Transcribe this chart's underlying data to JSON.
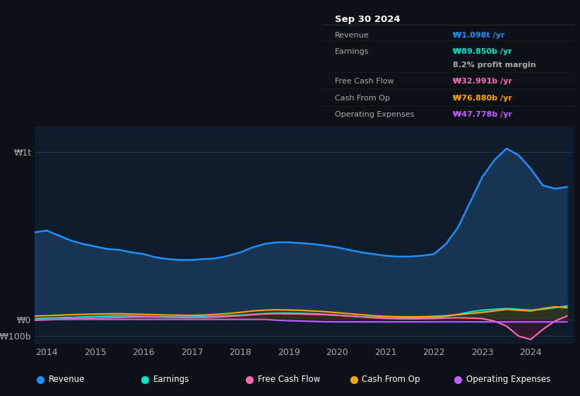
{
  "background_color": "#0d1117",
  "plot_bg_color": "#0d1b2a",
  "info_box_bg": "#000000",
  "info_box_date": "Sep 30 2024",
  "info_box_rows": [
    {
      "label": "Revenue",
      "value": "₩1.098t /yr",
      "value_color": "#1e90ff"
    },
    {
      "label": "Earnings",
      "value": "₩89.850b /yr",
      "value_color": "#00e5cc"
    },
    {
      "label": "",
      "value": "8.2% profit margin",
      "value_color": "#aaaaaa"
    },
    {
      "label": "Free Cash Flow",
      "value": "₩32.991b /yr",
      "value_color": "#ff69b4"
    },
    {
      "label": "Cash From Op",
      "value": "₩76.880b /yr",
      "value_color": "#ffa500"
    },
    {
      "label": "Operating Expenses",
      "value": "₩47.778b /yr",
      "value_color": "#bf5fff"
    }
  ],
  "ylabel_top": "₩1t",
  "ylabel_zero": "₩0",
  "ylabel_bottom": "-₩100b",
  "x_ticks": [
    2014,
    2015,
    2016,
    2017,
    2018,
    2019,
    2020,
    2021,
    2022,
    2023,
    2024
  ],
  "series": {
    "revenue": {
      "color": "#1e90ff",
      "fill_color": "#1a3a5c",
      "label": "Revenue",
      "x": [
        2013.75,
        2014.0,
        2014.25,
        2014.5,
        2014.75,
        2015.0,
        2015.25,
        2015.5,
        2015.75,
        2016.0,
        2016.25,
        2016.5,
        2016.75,
        2017.0,
        2017.25,
        2017.5,
        2017.75,
        2018.0,
        2018.25,
        2018.5,
        2018.75,
        2019.0,
        2019.25,
        2019.5,
        2019.75,
        2020.0,
        2020.25,
        2020.5,
        2020.75,
        2021.0,
        2021.25,
        2021.5,
        2021.75,
        2022.0,
        2022.25,
        2022.5,
        2022.75,
        2023.0,
        2023.25,
        2023.5,
        2023.75,
        2024.0,
        2024.25,
        2024.5,
        2024.75
      ],
      "y": [
        520,
        530,
        500,
        470,
        450,
        435,
        420,
        415,
        400,
        390,
        370,
        360,
        355,
        355,
        360,
        365,
        380,
        400,
        430,
        450,
        460,
        460,
        455,
        450,
        440,
        430,
        415,
        400,
        390,
        380,
        375,
        375,
        380,
        390,
        450,
        550,
        700,
        850,
        950,
        1020,
        980,
        900,
        800,
        780,
        790
      ]
    },
    "earnings": {
      "color": "#00e5cc",
      "fill_color": "#1a4a40",
      "label": "Earnings",
      "x": [
        2013.75,
        2014.0,
        2014.25,
        2014.5,
        2014.75,
        2015.0,
        2015.25,
        2015.5,
        2015.75,
        2016.0,
        2016.25,
        2016.5,
        2016.75,
        2017.0,
        2017.25,
        2017.5,
        2017.75,
        2018.0,
        2018.25,
        2018.5,
        2018.75,
        2019.0,
        2019.25,
        2019.5,
        2019.75,
        2020.0,
        2020.25,
        2020.5,
        2020.75,
        2021.0,
        2021.25,
        2021.5,
        2021.75,
        2022.0,
        2022.25,
        2022.5,
        2022.75,
        2023.0,
        2023.25,
        2023.5,
        2023.75,
        2024.0,
        2024.25,
        2024.5,
        2024.75
      ],
      "y": [
        5,
        8,
        10,
        12,
        15,
        18,
        20,
        22,
        20,
        18,
        16,
        15,
        14,
        14,
        16,
        18,
        22,
        25,
        30,
        35,
        38,
        38,
        36,
        34,
        30,
        25,
        20,
        16,
        12,
        10,
        8,
        8,
        10,
        12,
        18,
        30,
        45,
        55,
        60,
        65,
        60,
        55,
        60,
        70,
        80
      ]
    },
    "free_cash_flow": {
      "color": "#ff69b4",
      "fill_color": "#4a1a2a",
      "label": "Free Cash Flow",
      "x": [
        2013.75,
        2014.0,
        2014.25,
        2014.5,
        2014.75,
        2015.0,
        2015.25,
        2015.5,
        2015.75,
        2016.0,
        2016.25,
        2016.5,
        2016.75,
        2017.0,
        2017.25,
        2017.5,
        2017.75,
        2018.0,
        2018.25,
        2018.5,
        2018.75,
        2019.0,
        2019.25,
        2019.5,
        2019.75,
        2020.0,
        2020.25,
        2020.5,
        2020.75,
        2021.0,
        2021.25,
        2021.5,
        2021.75,
        2022.0,
        2022.25,
        2022.5,
        2022.75,
        2023.0,
        2023.25,
        2023.5,
        2023.75,
        2024.0,
        2024.25,
        2024.5,
        2024.75
      ],
      "y": [
        -5,
        -3,
        0,
        3,
        5,
        8,
        10,
        12,
        14,
        15,
        14,
        13,
        12,
        11,
        12,
        14,
        18,
        22,
        28,
        32,
        34,
        33,
        32,
        30,
        28,
        25,
        20,
        15,
        10,
        6,
        4,
        3,
        4,
        5,
        8,
        10,
        8,
        5,
        -10,
        -40,
        -100,
        -120,
        -60,
        -10,
        20
      ]
    },
    "cash_from_op": {
      "color": "#ffa500",
      "fill_color": "#3a2a00",
      "label": "Cash From Op",
      "x": [
        2013.75,
        2014.0,
        2014.25,
        2014.5,
        2014.75,
        2015.0,
        2015.25,
        2015.5,
        2015.75,
        2016.0,
        2016.25,
        2016.5,
        2016.75,
        2017.0,
        2017.25,
        2017.5,
        2017.75,
        2018.0,
        2018.25,
        2018.5,
        2018.75,
        2019.0,
        2019.25,
        2019.5,
        2019.75,
        2020.0,
        2020.25,
        2020.5,
        2020.75,
        2021.0,
        2021.25,
        2021.5,
        2021.75,
        2022.0,
        2022.25,
        2022.5,
        2022.75,
        2023.0,
        2023.25,
        2023.5,
        2023.75,
        2024.0,
        2024.25,
        2024.5,
        2024.75
      ],
      "y": [
        20,
        22,
        25,
        28,
        30,
        32,
        33,
        34,
        32,
        30,
        28,
        26,
        25,
        24,
        26,
        30,
        35,
        42,
        50,
        55,
        57,
        56,
        54,
        50,
        46,
        40,
        34,
        28,
        22,
        18,
        16,
        15,
        16,
        18,
        22,
        28,
        35,
        42,
        50,
        60,
        55,
        50,
        65,
        75,
        70
      ]
    },
    "operating_expenses": {
      "color": "#bf5fff",
      "fill_color": "#2a1a4a",
      "label": "Operating Expenses",
      "x": [
        2013.75,
        2014.0,
        2014.25,
        2014.5,
        2014.75,
        2015.0,
        2015.25,
        2015.5,
        2015.75,
        2016.0,
        2016.25,
        2016.5,
        2016.75,
        2017.0,
        2017.25,
        2017.5,
        2017.75,
        2018.0,
        2018.25,
        2018.5,
        2018.75,
        2019.0,
        2019.25,
        2019.5,
        2019.75,
        2020.0,
        2020.25,
        2020.5,
        2020.75,
        2021.0,
        2021.25,
        2021.5,
        2021.75,
        2022.0,
        2022.25,
        2022.5,
        2022.75,
        2023.0,
        2023.25,
        2023.5,
        2023.75,
        2024.0,
        2024.25,
        2024.5,
        2024.75
      ],
      "y": [
        0,
        0,
        0,
        0,
        0,
        0,
        0,
        0,
        0,
        0,
        0,
        0,
        0,
        0,
        0,
        0,
        0,
        0,
        0,
        0,
        -5,
        -8,
        -10,
        -12,
        -14,
        -15,
        -15,
        -15,
        -15,
        -15,
        -15,
        -15,
        -15,
        -15,
        -15,
        -15,
        -15,
        -15,
        -15,
        -15,
        -15,
        -15,
        -15,
        -15,
        -15
      ]
    }
  },
  "legend": [
    {
      "label": "Revenue",
      "color": "#1e90ff"
    },
    {
      "label": "Earnings",
      "color": "#00e5cc"
    },
    {
      "label": "Free Cash Flow",
      "color": "#ff69b4"
    },
    {
      "label": "Cash From Op",
      "color": "#ffa500"
    },
    {
      "label": "Operating Expenses",
      "color": "#bf5fff"
    }
  ]
}
